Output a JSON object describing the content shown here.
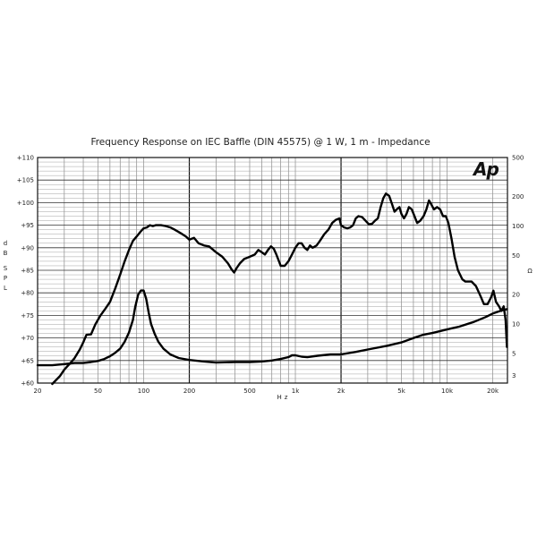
{
  "chart_data": {
    "type": "line",
    "title": "Frequency Response on IEC Baffle (DIN 45575) @ 1 W, 1 m - Impedance",
    "xlabel": "Hz",
    "ylabel_left": "dB SPL",
    "ylabel_right": "Ω",
    "x_scale": "log",
    "xlim": [
      20,
      25000
    ],
    "ylim_left": [
      60,
      110
    ],
    "ylim_right": [
      2.5,
      500
    ],
    "y_right_scale": "log",
    "grid": true,
    "logo": "Ap",
    "x_tick_labels": [
      {
        "v": 20,
        "t": "20"
      },
      {
        "v": 50,
        "t": "50"
      },
      {
        "v": 100,
        "t": "100"
      },
      {
        "v": 200,
        "t": "200"
      },
      {
        "v": 500,
        "t": "500"
      },
      {
        "v": 1000,
        "t": "1k"
      },
      {
        "v": 2000,
        "t": "2k"
      },
      {
        "v": 5000,
        "t": "5k"
      },
      {
        "v": 10000,
        "t": "10k"
      },
      {
        "v": 20000,
        "t": "20k"
      }
    ],
    "y_left_tick_labels": [
      {
        "v": 110,
        "t": "+110"
      },
      {
        "v": 105,
        "t": "+105"
      },
      {
        "v": 100,
        "t": "+100"
      },
      {
        "v": 95,
        "t": "+95"
      },
      {
        "v": 90,
        "t": "+90"
      },
      {
        "v": 85,
        "t": "+85"
      },
      {
        "v": 80,
        "t": "+80"
      },
      {
        "v": 75,
        "t": "+75"
      },
      {
        "v": 70,
        "t": "+70"
      },
      {
        "v": 65,
        "t": "+65"
      },
      {
        "v": 60,
        "t": "+60"
      }
    ],
    "y_right_tick_labels": [
      {
        "v": 500,
        "t": "500"
      },
      {
        "v": 200,
        "t": "200"
      },
      {
        "v": 100,
        "t": "100"
      },
      {
        "v": 50,
        "t": "50"
      },
      {
        "v": 20,
        "t": "20"
      },
      {
        "v": 10,
        "t": "10"
      },
      {
        "v": 5,
        "t": "5"
      },
      {
        "v": 3,
        "t": "3"
      }
    ],
    "series": [
      {
        "axis": "left",
        "points": [
          [
            25,
            59.8
          ],
          [
            28,
            61.5
          ],
          [
            30,
            63
          ],
          [
            33,
            64.5
          ],
          [
            35,
            65.5
          ],
          [
            38,
            67.5
          ],
          [
            40,
            69
          ],
          [
            42,
            70.7
          ],
          [
            45,
            70.8
          ],
          [
            48,
            73
          ],
          [
            52,
            75
          ],
          [
            56,
            76.5
          ],
          [
            60,
            78
          ],
          [
            65,
            81
          ],
          [
            70,
            84
          ],
          [
            75,
            87
          ],
          [
            80,
            89.5
          ],
          [
            85,
            91.5
          ],
          [
            90,
            92.5
          ],
          [
            95,
            93.5
          ],
          [
            100,
            94.3
          ],
          [
            105,
            94.5
          ],
          [
            110,
            95
          ],
          [
            115,
            94.8
          ],
          [
            120,
            95
          ],
          [
            130,
            95
          ],
          [
            140,
            94.8
          ],
          [
            150,
            94.5
          ],
          [
            160,
            94
          ],
          [
            170,
            93.5
          ],
          [
            180,
            93
          ],
          [
            190,
            92.5
          ],
          [
            200,
            91.8
          ],
          [
            215,
            92.2
          ],
          [
            230,
            91
          ],
          [
            250,
            90.5
          ],
          [
            270,
            90.3
          ],
          [
            300,
            89
          ],
          [
            330,
            88
          ],
          [
            360,
            86.5
          ],
          [
            380,
            85.2
          ],
          [
            395,
            84.5
          ],
          [
            410,
            85.5
          ],
          [
            430,
            86.5
          ],
          [
            460,
            87.5
          ],
          [
            500,
            88
          ],
          [
            540,
            88.5
          ],
          [
            570,
            89.5
          ],
          [
            600,
            89
          ],
          [
            630,
            88.5
          ],
          [
            660,
            89.5
          ],
          [
            690,
            90.3
          ],
          [
            720,
            89.8
          ],
          [
            750,
            88.5
          ],
          [
            780,
            87
          ],
          [
            800,
            86
          ],
          [
            850,
            86
          ],
          [
            900,
            87
          ],
          [
            950,
            88.5
          ],
          [
            1000,
            90
          ],
          [
            1050,
            91
          ],
          [
            1100,
            91
          ],
          [
            1150,
            90
          ],
          [
            1200,
            89.5
          ],
          [
            1250,
            90.5
          ],
          [
            1300,
            90
          ],
          [
            1380,
            90.5
          ],
          [
            1450,
            91.5
          ],
          [
            1550,
            93
          ],
          [
            1650,
            94
          ],
          [
            1750,
            95.5
          ],
          [
            1850,
            96.2
          ],
          [
            1950,
            96.5
          ],
          [
            2000,
            95
          ],
          [
            2100,
            94.5
          ],
          [
            2200,
            94.3
          ],
          [
            2300,
            94.5
          ],
          [
            2400,
            95
          ],
          [
            2500,
            96.5
          ],
          [
            2600,
            97
          ],
          [
            2750,
            96.8
          ],
          [
            2900,
            96
          ],
          [
            3050,
            95.2
          ],
          [
            3200,
            95.3
          ],
          [
            3350,
            96
          ],
          [
            3500,
            96.5
          ],
          [
            3650,
            99
          ],
          [
            3800,
            101
          ],
          [
            3950,
            102
          ],
          [
            4150,
            101.5
          ],
          [
            4350,
            99.5
          ],
          [
            4500,
            98
          ],
          [
            4650,
            98.5
          ],
          [
            4850,
            99
          ],
          [
            5000,
            97.5
          ],
          [
            5200,
            96.5
          ],
          [
            5400,
            97.5
          ],
          [
            5600,
            99
          ],
          [
            5850,
            98.5
          ],
          [
            6100,
            97
          ],
          [
            6350,
            95.5
          ],
          [
            6650,
            96
          ],
          [
            7000,
            97
          ],
          [
            7300,
            98.5
          ],
          [
            7600,
            100.5
          ],
          [
            7900,
            99.5
          ],
          [
            8200,
            98.5
          ],
          [
            8600,
            99
          ],
          [
            9000,
            98.5
          ],
          [
            9400,
            97
          ],
          [
            9800,
            97
          ],
          [
            10200,
            95.5
          ],
          [
            10700,
            92
          ],
          [
            11200,
            88
          ],
          [
            11800,
            85
          ],
          [
            12600,
            83
          ],
          [
            13200,
            82.5
          ],
          [
            14500,
            82.5
          ],
          [
            15500,
            81.5
          ],
          [
            16500,
            79.5
          ],
          [
            17500,
            77.5
          ],
          [
            18500,
            77.5
          ],
          [
            19500,
            79
          ],
          [
            20200,
            80.5
          ],
          [
            21000,
            78
          ],
          [
            22000,
            77
          ],
          [
            22800,
            76
          ],
          [
            23600,
            77
          ],
          [
            24300,
            74
          ],
          [
            24800,
            68
          ]
        ]
      },
      {
        "axis": "right",
        "points": [
          [
            20,
            3.8
          ],
          [
            25,
            3.8
          ],
          [
            30,
            3.9
          ],
          [
            35,
            4.0
          ],
          [
            40,
            4.0
          ],
          [
            45,
            4.1
          ],
          [
            50,
            4.2
          ],
          [
            55,
            4.4
          ],
          [
            60,
            4.7
          ],
          [
            65,
            5.1
          ],
          [
            70,
            5.6
          ],
          [
            75,
            6.6
          ],
          [
            80,
            8.2
          ],
          [
            85,
            11
          ],
          [
            88,
            15
          ],
          [
            92,
            20
          ],
          [
            96,
            22
          ],
          [
            100,
            22
          ],
          [
            104,
            18
          ],
          [
            108,
            13
          ],
          [
            112,
            10
          ],
          [
            118,
            8
          ],
          [
            125,
            6.6
          ],
          [
            135,
            5.6
          ],
          [
            150,
            4.9
          ],
          [
            170,
            4.5
          ],
          [
            200,
            4.3
          ],
          [
            250,
            4.15
          ],
          [
            300,
            4.05
          ],
          [
            400,
            4.1
          ],
          [
            500,
            4.1
          ],
          [
            600,
            4.15
          ],
          [
            700,
            4.25
          ],
          [
            800,
            4.4
          ],
          [
            900,
            4.6
          ],
          [
            950,
            4.8
          ],
          [
            1000,
            4.8
          ],
          [
            1100,
            4.65
          ],
          [
            1200,
            4.6
          ],
          [
            1400,
            4.75
          ],
          [
            1700,
            4.9
          ],
          [
            2000,
            4.9
          ],
          [
            2500,
            5.2
          ],
          [
            3000,
            5.5
          ],
          [
            4000,
            6.0
          ],
          [
            5000,
            6.5
          ],
          [
            6000,
            7.2
          ],
          [
            7000,
            7.8
          ],
          [
            8000,
            8.1
          ],
          [
            10000,
            8.8
          ],
          [
            12000,
            9.4
          ],
          [
            15000,
            10.5
          ],
          [
            18000,
            11.8
          ],
          [
            20000,
            12.8
          ],
          [
            23000,
            13.8
          ],
          [
            24800,
            14.2
          ]
        ]
      }
    ]
  }
}
